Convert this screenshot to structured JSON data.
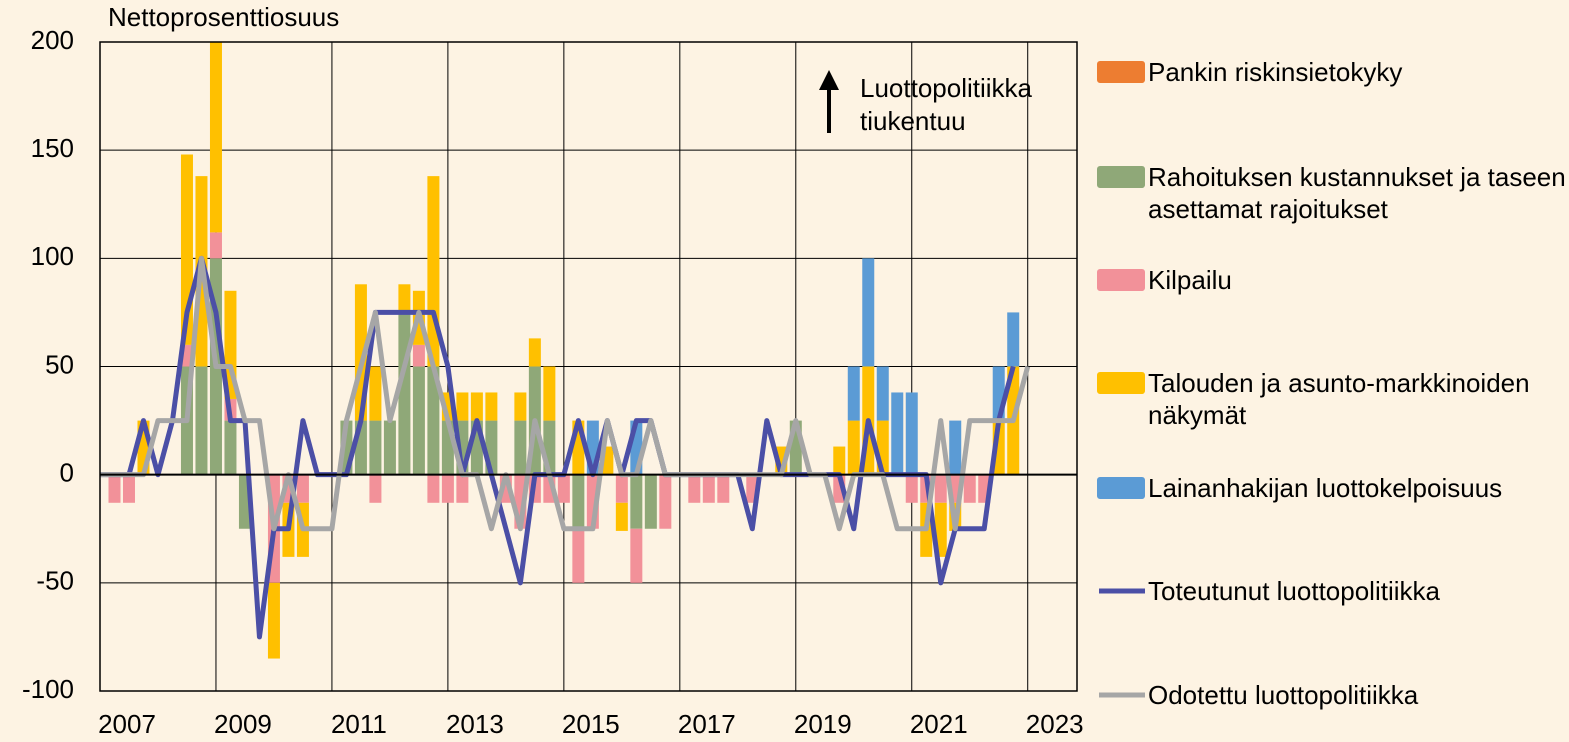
{
  "chart_data": {
    "type": "bar-line",
    "y_label": "Nettoprosenttiosuus",
    "annotation": "Luottopolitiikka tiukentuu",
    "x": [
      2007,
      2007.25,
      2007.5,
      2007.75,
      2008,
      2008.25,
      2008.5,
      2008.75,
      2009,
      2009.25,
      2009.5,
      2009.75,
      2010,
      2010.25,
      2010.5,
      2010.75,
      2011,
      2011.25,
      2011.5,
      2011.75,
      2012,
      2012.25,
      2012.5,
      2012.75,
      2013,
      2013.25,
      2013.5,
      2013.75,
      2014,
      2014.25,
      2014.5,
      2014.75,
      2015,
      2015.25,
      2015.5,
      2015.75,
      2016,
      2016.25,
      2016.5,
      2016.75,
      2017,
      2017.25,
      2017.5,
      2017.75,
      2018,
      2018.25,
      2018.5,
      2018.75,
      2019,
      2019.25,
      2019.5,
      2019.75,
      2020,
      2020.25,
      2020.5,
      2020.75,
      2021,
      2021.25,
      2021.5,
      2021.75,
      2022,
      2022.25,
      2022.5,
      2022.75,
      2023
    ],
    "xlim": [
      2007,
      2023.85
    ],
    "xticks": [
      2007,
      2009,
      2011,
      2013,
      2015,
      2017,
      2019,
      2021,
      2023
    ],
    "ylim": [
      -100,
      200
    ],
    "yticks": [
      200,
      150,
      100,
      50,
      0,
      -50,
      -100
    ],
    "grid": true,
    "series": [
      {
        "name": "Pankin riskinsietokyky",
        "kind": "bar",
        "color": "#ed7d31",
        "values": [
          0,
          0,
          0,
          0,
          0,
          0,
          0,
          0,
          0,
          0,
          0,
          0,
          0,
          0,
          0,
          0,
          0,
          0,
          0,
          0,
          0,
          0,
          0,
          0,
          0,
          0,
          0,
          0,
          0,
          0,
          0,
          0,
          0,
          0,
          0,
          0,
          0,
          0,
          0,
          0,
          0,
          0,
          0,
          0,
          0,
          0,
          0,
          0,
          0,
          0,
          0,
          0,
          0,
          0,
          0,
          0,
          0,
          0,
          0,
          0,
          0,
          0,
          0,
          0,
          0
        ]
      },
      {
        "name": "Rahoituksen kustannukset ja taseen asettamat rajoitukset",
        "kind": "bar",
        "color": "#8fa878",
        "values": [
          0,
          0,
          0,
          0,
          0,
          0,
          50,
          50,
          100,
          25,
          -25,
          0,
          0,
          0,
          0,
          0,
          0,
          25,
          25,
          25,
          25,
          75,
          50,
          50,
          25,
          25,
          25,
          25,
          0,
          25,
          50,
          25,
          0,
          -25,
          0,
          0,
          0,
          -25,
          -25,
          0,
          0,
          0,
          0,
          0,
          0,
          0,
          0,
          0,
          25,
          0,
          0,
          0,
          0,
          0,
          0,
          0,
          0,
          0,
          0,
          0,
          0,
          0,
          0,
          0,
          0
        ]
      },
      {
        "name": "Kilpailu",
        "kind": "bar",
        "color": "#f29199",
        "values": [
          0,
          -13,
          -13,
          0,
          0,
          0,
          10,
          0,
          12,
          10,
          0,
          0,
          -50,
          -13,
          -13,
          0,
          0,
          0,
          0,
          -13,
          0,
          0,
          10,
          -13,
          -13,
          -13,
          0,
          0,
          -13,
          -25,
          -13,
          -13,
          -13,
          -25,
          -25,
          0,
          -13,
          -25,
          0,
          -25,
          0,
          -13,
          -13,
          -13,
          0,
          -13,
          0,
          0,
          0,
          0,
          0,
          -13,
          0,
          0,
          0,
          0,
          -13,
          -13,
          -13,
          -13,
          -13,
          -13,
          0,
          0,
          0
        ]
      },
      {
        "name": "Talouden ja asunto-markkinoiden näkymät",
        "kind": "bar",
        "color": "#ffc000",
        "values": [
          0,
          0,
          0,
          25,
          0,
          0,
          88,
          88,
          88,
          50,
          0,
          0,
          -35,
          -25,
          -25,
          0,
          0,
          0,
          63,
          25,
          0,
          13,
          25,
          88,
          13,
          13,
          13,
          13,
          0,
          13,
          13,
          25,
          0,
          25,
          0,
          13,
          -13,
          0,
          0,
          0,
          0,
          0,
          0,
          0,
          0,
          0,
          0,
          13,
          0,
          0,
          0,
          13,
          25,
          50,
          25,
          0,
          0,
          -25,
          -25,
          -13,
          0,
          0,
          25,
          50,
          0
        ]
      },
      {
        "name": "Lainanhakijan luottokelpoisuus",
        "kind": "bar",
        "color": "#5b9bd5",
        "values": [
          0,
          0,
          0,
          0,
          0,
          0,
          0,
          0,
          0,
          0,
          0,
          0,
          0,
          0,
          0,
          0,
          0,
          0,
          0,
          0,
          0,
          0,
          0,
          0,
          0,
          0,
          0,
          0,
          0,
          0,
          0,
          0,
          0,
          0,
          25,
          0,
          0,
          25,
          0,
          0,
          0,
          0,
          0,
          0,
          0,
          0,
          0,
          0,
          0,
          0,
          0,
          0,
          25,
          50,
          25,
          38,
          38,
          0,
          0,
          25,
          0,
          0,
          25,
          25,
          0
        ]
      },
      {
        "name": "Toteutunut luottopolitiikka",
        "kind": "line",
        "color": "#4b4fa6",
        "values": [
          0,
          0,
          0,
          25,
          0,
          25,
          75,
          100,
          75,
          25,
          25,
          -75,
          -25,
          -25,
          25,
          0,
          0,
          0,
          25,
          75,
          75,
          75,
          75,
          75,
          50,
          0,
          25,
          0,
          -25,
          -50,
          0,
          0,
          0,
          25,
          0,
          25,
          0,
          25,
          25,
          0,
          0,
          0,
          0,
          0,
          0,
          -25,
          25,
          0,
          0,
          0,
          0,
          0,
          -25,
          25,
          0,
          0,
          0,
          0,
          -50,
          -25,
          -25,
          -25,
          25,
          50,
          null
        ]
      },
      {
        "name": "Odotettu luottopolitiikka",
        "kind": "line",
        "color": "#a6a6a6",
        "values": [
          0,
          0,
          0,
          0,
          25,
          25,
          25,
          100,
          50,
          50,
          25,
          25,
          -25,
          0,
          -25,
          -25,
          -25,
          25,
          50,
          75,
          25,
          50,
          75,
          50,
          25,
          0,
          0,
          -25,
          0,
          -25,
          25,
          0,
          -25,
          -25,
          -25,
          25,
          0,
          0,
          25,
          0,
          0,
          0,
          0,
          0,
          0,
          0,
          0,
          0,
          25,
          0,
          0,
          -25,
          0,
          0,
          0,
          -25,
          -25,
          -25,
          25,
          -25,
          25,
          25,
          25,
          25,
          50
        ]
      }
    ]
  }
}
